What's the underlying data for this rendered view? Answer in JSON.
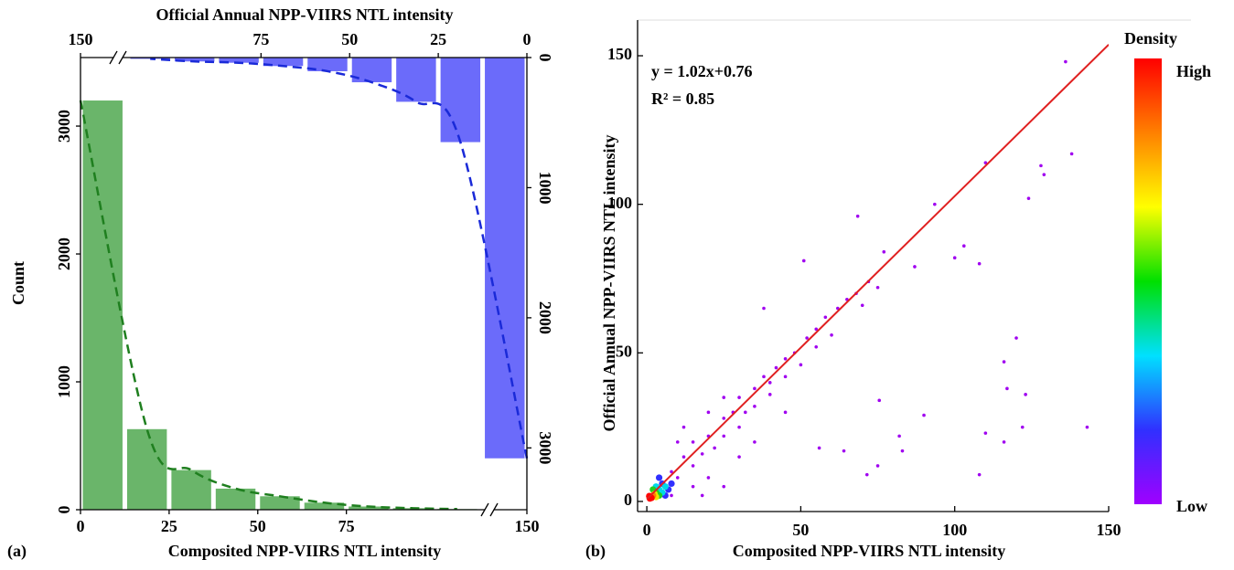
{
  "chart_data": [
    {
      "type": "histogram",
      "panel_label": "(a)",
      "xlabel": "Composited NPP-VIIRS NTL intensity",
      "x2label": "Official Annual NPP-VIIRS NTL intensity",
      "ylabel": "Count",
      "bins": [
        0,
        12.5,
        25,
        37.5,
        50,
        62.5,
        75,
        87.5,
        100,
        112.5
      ],
      "xlim": [
        0,
        150
      ],
      "xticks": [
        0,
        25,
        50,
        75,
        150
      ],
      "x2lim": [
        150,
        0
      ],
      "x2ticks": [
        150,
        75,
        50,
        25,
        0
      ],
      "ylim": [
        0,
        3536
      ],
      "yticks": [
        0,
        1000,
        2000,
        3000
      ],
      "y2lim": [
        0,
        3475
      ],
      "y2ticks": [
        0,
        1000,
        2000,
        3000
      ],
      "y2_inverted": true,
      "series": [
        {
          "color": "#6ab56a",
          "fit_color": "#1f7f1f",
          "values": [
            3200,
            630,
            310,
            165,
            105,
            55,
            25,
            12,
            5
          ]
        },
        {
          "color": "#6b6bfa",
          "fit_color": "#1a2ad8",
          "axis": "y2",
          "xaxis": "x2",
          "values": [
            3080,
            650,
            340,
            190,
            105,
            65,
            40,
            30,
            10
          ]
        }
      ]
    },
    {
      "type": "scatter",
      "panel_label": "(b)",
      "xlabel": "Composited NPP-VIIRS NTL intensity",
      "ylabel": "Official Annual NPP-VIIRS NTL intensity",
      "xlim": [
        -3,
        150
      ],
      "xticks": [
        0,
        50,
        100,
        150
      ],
      "ylim": [
        -3.4,
        162
      ],
      "yticks": [
        0,
        50,
        100,
        150
      ],
      "fit_line": {
        "slope": 1.02,
        "intercept": 0.76,
        "label": "y = 1.02x+0.76",
        "color": "#e02020"
      },
      "r2_label": "R² = 0.85",
      "colorbar": {
        "title": "Density",
        "high": "High",
        "low": "Low",
        "colors": [
          "#a000ff",
          "#3030ff",
          "#00e0ff",
          "#00e000",
          "#ffff00",
          "#ff8000",
          "#ff0000"
        ]
      },
      "series": [
        {
          "color": "#a000f0",
          "x": [
            136,
            138,
            128,
            129,
            124,
            110,
            93.5,
            68.5,
            103,
            108,
            87,
            77,
            38,
            51,
            100,
            120,
            116,
            117,
            123,
            122,
            143,
            110,
            116,
            108,
            71.5,
            83,
            82,
            56,
            75.5,
            64,
            75,
            90,
            5,
            8,
            10,
            12,
            15,
            15,
            18,
            20,
            22,
            25,
            25,
            28,
            30,
            30,
            32,
            35,
            35,
            38,
            40,
            40,
            42,
            45,
            45,
            48,
            50,
            52,
            55,
            55,
            58,
            60,
            62,
            65,
            68,
            70,
            72,
            75,
            20,
            25,
            10,
            15,
            20,
            30,
            12,
            8,
            18,
            25,
            35,
            45
          ],
          "y": [
            148,
            117,
            113,
            110,
            102,
            114,
            100,
            96,
            86,
            80,
            79,
            84,
            65,
            81,
            82,
            55,
            47,
            38,
            36,
            25,
            25,
            23,
            20,
            9,
            9,
            17,
            22,
            18,
            34,
            17,
            12,
            29,
            3,
            10,
            8,
            15,
            12,
            20,
            16,
            22,
            18,
            28,
            22,
            30,
            25,
            35,
            30,
            38,
            32,
            42,
            40,
            36,
            45,
            48,
            42,
            50,
            46,
            55,
            58,
            52,
            62,
            56,
            65,
            68,
            70,
            66,
            74,
            72,
            30,
            35,
            20,
            5,
            8,
            15,
            25,
            2,
            2,
            5,
            20,
            30
          ]
        },
        {
          "color": "#3030ff",
          "x": [
            5,
            7,
            4,
            8,
            6
          ],
          "y": [
            6,
            4,
            8,
            6,
            2
          ]
        },
        {
          "color": "#00d8e8",
          "x": [
            4,
            5,
            6,
            3
          ],
          "y": [
            4,
            3,
            5,
            5
          ]
        },
        {
          "color": "#20d020",
          "x": [
            3,
            4,
            2
          ],
          "y": [
            3,
            2,
            4
          ]
        },
        {
          "color": "#f0e000",
          "x": [
            2.5,
            3
          ],
          "y": [
            2.5,
            1.5
          ]
        },
        {
          "color": "#ff8000",
          "x": [
            2,
            1.5
          ],
          "y": [
            2,
            1.5
          ]
        },
        {
          "color": "#ff0000",
          "x": [
            1,
            1.5,
            0.8
          ],
          "y": [
            1,
            1.2,
            1.8
          ]
        }
      ]
    }
  ]
}
